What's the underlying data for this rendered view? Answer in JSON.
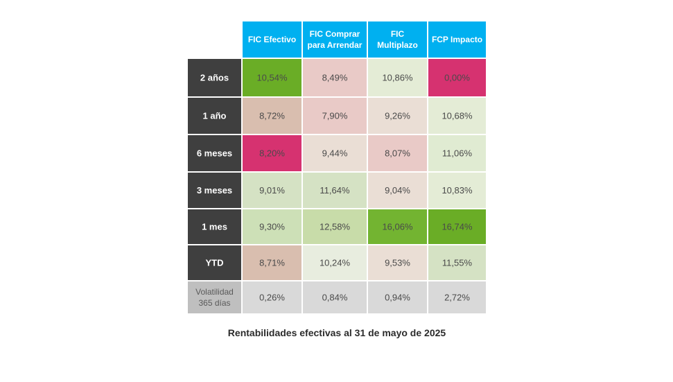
{
  "chart_data": {
    "type": "table",
    "caption": "Rentabilidades efectivas al 31 de mayo de 2025",
    "columns": [
      [
        "FIC Efectivo"
      ],
      [
        "FIC Comprar",
        "para Arrendar"
      ],
      [
        "FIC",
        "Multiplazo"
      ],
      [
        "FCP Impacto"
      ]
    ],
    "rows": [
      {
        "label": [
          "2 años"
        ],
        "cells": [
          "10,54%",
          "8,49%",
          "10,86%",
          "0,00%"
        ],
        "colors": [
          "#6aad26",
          "#e9cac7",
          "#e4ecd6",
          "#d63270"
        ]
      },
      {
        "label": [
          "1 año"
        ],
        "cells": [
          "8,72%",
          "7,90%",
          "9,26%",
          "10,68%"
        ],
        "colors": [
          "#d9beaf",
          "#e9cac7",
          "#eaded5",
          "#e4ecd6"
        ]
      },
      {
        "label": [
          "6 meses"
        ],
        "cells": [
          "8,20%",
          "9,44%",
          "8,07%",
          "11,06%"
        ],
        "colors": [
          "#d63270",
          "#eaded5",
          "#e9cac7",
          "#e0ebd2"
        ]
      },
      {
        "label": [
          "3 meses"
        ],
        "cells": [
          "9,01%",
          "11,64%",
          "9,04%",
          "10,83%"
        ],
        "colors": [
          "#d5e2c4",
          "#d5e2c4",
          "#eaded5",
          "#e4ecd6"
        ]
      },
      {
        "label": [
          "1 mes"
        ],
        "cells": [
          "9,30%",
          "12,58%",
          "16,06%",
          "16,74%"
        ],
        "colors": [
          "#cde0b7",
          "#c8dca9",
          "#73b431",
          "#6aad26"
        ]
      },
      {
        "label": [
          "YTD"
        ],
        "cells": [
          "8,71%",
          "10,24%",
          "9,53%",
          "11,55%"
        ],
        "colors": [
          "#d9beaf",
          "#e8eddf",
          "#eaded5",
          "#d5e2c4"
        ]
      },
      {
        "label": [
          "Volatilidad",
          "365 días"
        ],
        "cells": [
          "0,26%",
          "0,84%",
          "0,94%",
          "2,72%"
        ],
        "colors": [
          "#d9d9d9",
          "#d9d9d9",
          "#d9d9d9",
          "#d9d9d9"
        ],
        "muted": true
      }
    ],
    "colors": {
      "header_bg": "#00b0f0",
      "header_text": "#ffffff",
      "row_label_bg": "#3f3f3f",
      "row_label_text": "#ffffff",
      "muted_label_bg": "#bfbfbf",
      "muted_label_text": "#595959",
      "cell_text": "#4a4a4a"
    }
  }
}
